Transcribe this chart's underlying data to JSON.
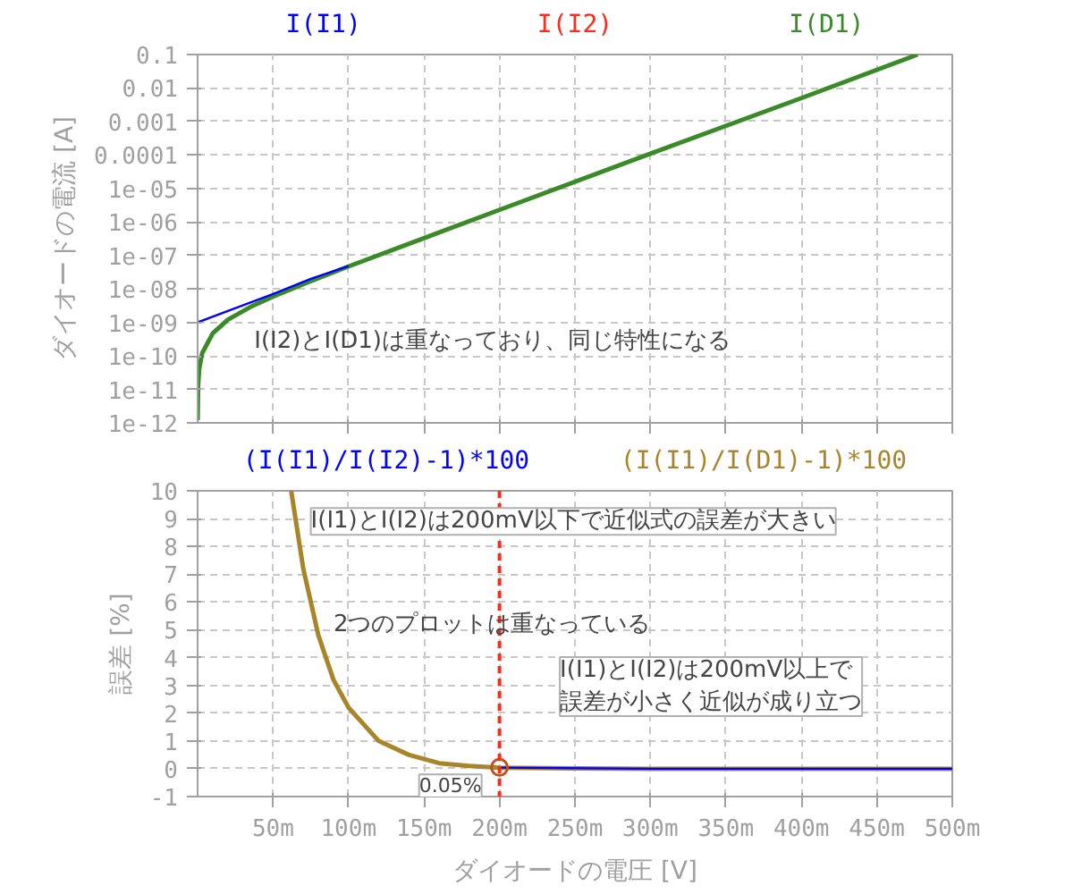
{
  "chart_data": [
    {
      "type": "line",
      "ylabel": "ダイオードの電流 [A]",
      "xlim": [
        0,
        500
      ],
      "ylim": [
        1e-12,
        0.1
      ],
      "log": "y",
      "grid": true,
      "legend": "top",
      "tick_labels": "y",
      "xticks": [
        50,
        100,
        150,
        200,
        250,
        300,
        350,
        400,
        450,
        500
      ],
      "yticks": [
        {
          "value": 1e-12,
          "label": "1e-12"
        },
        {
          "value": 1e-11,
          "label": "1e-11"
        },
        {
          "value": 1e-10,
          "label": "1e-10"
        },
        {
          "value": 1e-09,
          "label": "1e-09"
        },
        {
          "value": 1e-08,
          "label": "1e-08"
        },
        {
          "value": 1e-07,
          "label": "1e-07"
        },
        {
          "value": 1e-06,
          "label": "1e-06"
        },
        {
          "value": 1e-05,
          "label": "1e-05"
        },
        0.0001,
        0.001,
        0.01,
        0.1
      ],
      "series": [
        {
          "name": "I(I1)",
          "color": "#0000ff",
          "x": [
            0,
            20,
            50,
            75,
            100
          ],
          "values": [
            1e-09,
            2.2e-09,
            7e-09,
            2e-08,
            4.8e-08
          ]
        },
        {
          "name": "I(I2)",
          "color": "#ff2a1a"
        },
        {
          "name": "I(D1)",
          "color": "#3a8a2a",
          "x": [
            0.03,
            0.3,
            1,
            3,
            10,
            20,
            35,
            50,
            75,
            100,
            150,
            200,
            300,
            400,
            477
          ],
          "values": [
            1.2e-12,
            1.2e-11,
            4e-11,
            1.2e-10,
            4.7e-10,
            1.2e-09,
            2.9e-09,
            5.9e-09,
            1.7e-08,
            4.7e-08,
            3.3e-07,
            2.3e-06,
            0.00011,
            0.005,
            0.1
          ]
        }
      ],
      "annotations": [
        "I(I2)とI(D1)は重なっており、同じ特性になる"
      ]
    },
    {
      "type": "line",
      "xlabel": "ダイオードの電圧 [V]",
      "ylabel": "誤差 [%]",
      "xlim": [
        0,
        500
      ],
      "ylim": [
        -1,
        10
      ],
      "grid": true,
      "legend": "top",
      "xticks": [
        {
          "value": 50,
          "label": "50m"
        },
        {
          "value": 100,
          "label": "100m"
        },
        {
          "value": 150,
          "label": "150m"
        },
        {
          "value": 200,
          "label": "200m"
        },
        {
          "value": 250,
          "label": "250m"
        },
        {
          "value": 300,
          "label": "300m"
        },
        {
          "value": 350,
          "label": "350m"
        },
        {
          "value": 400,
          "label": "400m"
        },
        {
          "value": 450,
          "label": "450m"
        },
        {
          "value": 500,
          "label": "500m"
        }
      ],
      "yticks": [
        -1,
        0,
        1,
        2,
        3,
        4,
        5,
        6,
        7,
        8,
        9,
        10
      ],
      "series": [
        {
          "name": "(I(I1)/I(I2)-1)*100",
          "color": "#0000ff",
          "x": [
            200,
            300,
            400,
            500
          ],
          "values": [
            0.04,
            0,
            0,
            0
          ]
        },
        {
          "name": "(I(I1)/I(D1)-1)*100",
          "color": "#a8852a",
          "x": [
            62,
            70,
            80,
            90,
            100,
            120,
            140,
            160,
            180,
            200,
            250,
            300,
            400,
            500
          ],
          "values": [
            10,
            7.2,
            4.8,
            3.2,
            2.2,
            1.0,
            0.5,
            0.2,
            0.1,
            0.04,
            0.01,
            0,
            0,
            0
          ]
        }
      ],
      "ref_lines": [
        {
          "axis": "x",
          "value": 200,
          "color": "#ff2a1a",
          "line_style": "dashed"
        }
      ],
      "annotations": [
        "I(I1)とI(I2)は200mV以下で近似式の誤差が大きい",
        "2つのプロットは重なっている",
        "I(I1)とI(I2)は200mV以上で誤差が小さく近似が成り立つ",
        {
          "text": "0.05%",
          "x": 200,
          "y": 0.05
        }
      ]
    }
  ]
}
